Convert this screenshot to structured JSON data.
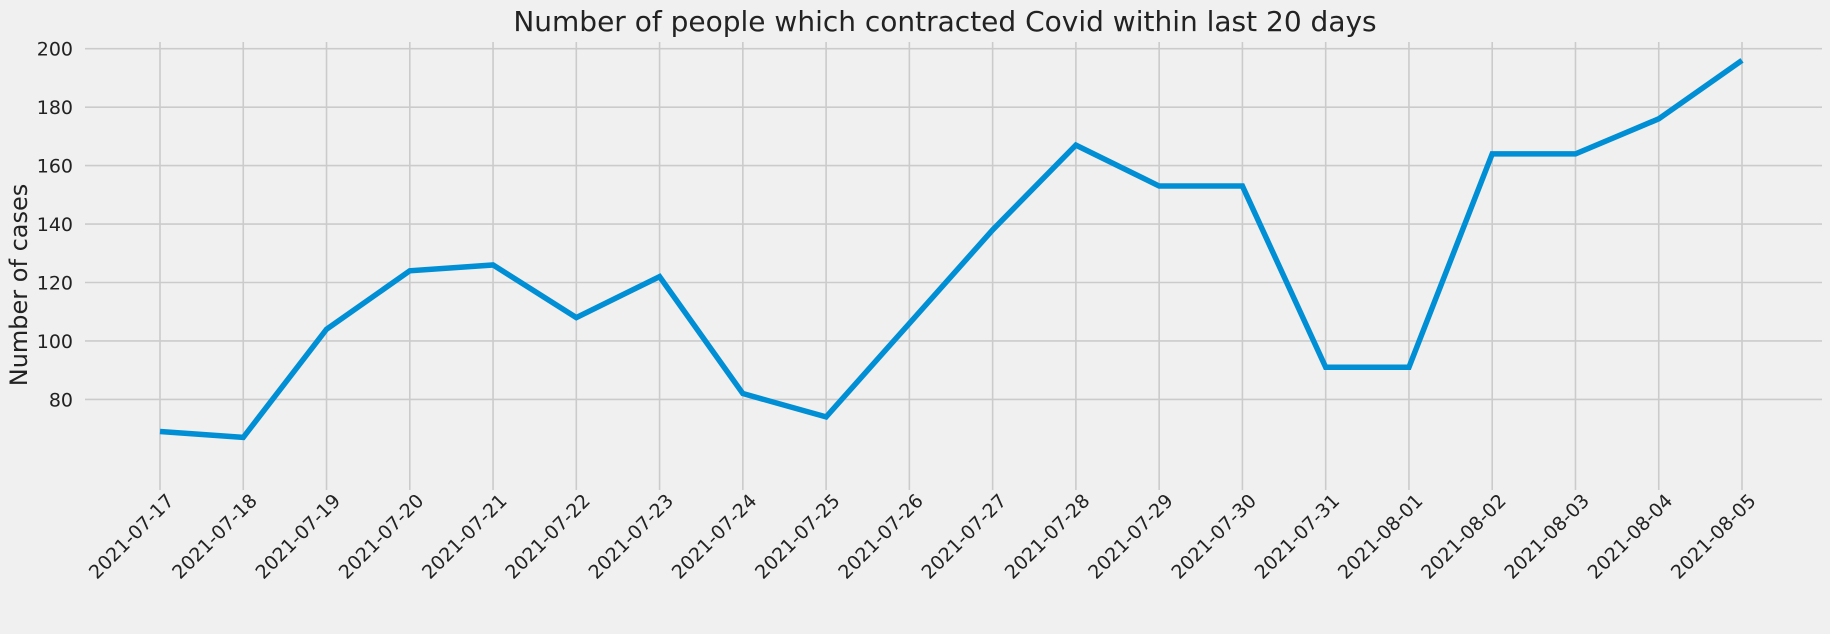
{
  "chart_data": {
    "type": "line",
    "title": "Number of people which contracted Covid within last 20 days",
    "xlabel": "",
    "ylabel": "Number of cases",
    "x": [
      "2021-07-17",
      "2021-07-18",
      "2021-07-19",
      "2021-07-20",
      "2021-07-21",
      "2021-07-22",
      "2021-07-23",
      "2021-07-24",
      "2021-07-25",
      "2021-07-26",
      "2021-07-27",
      "2021-07-28",
      "2021-07-29",
      "2021-07-30",
      "2021-07-31",
      "2021-08-01",
      "2021-08-02",
      "2021-08-03",
      "2021-08-04",
      "2021-08-05"
    ],
    "series": [
      {
        "values": [
          69,
          67,
          104,
          124,
          126,
          108,
          122,
          82,
          74,
          106,
          138,
          167,
          153,
          153,
          91,
          91,
          164,
          164,
          176,
          196
        ]
      }
    ],
    "yticks": [
      "80",
      "100",
      "120",
      "140",
      "160",
      "180",
      "200"
    ],
    "ylim": [
      62,
      204
    ],
    "grid": true,
    "line_color": "#008fd5",
    "background_color": "#f0f0f0",
    "grid_color": "#cbcbcb"
  }
}
